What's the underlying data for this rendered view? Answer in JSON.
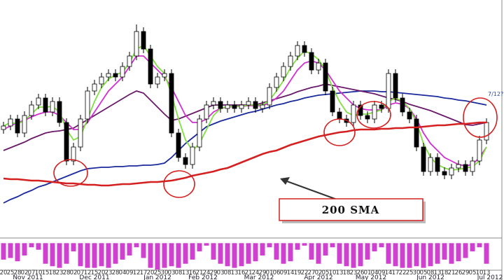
{
  "chart_data": [
    {
      "type": "candlestick",
      "categories": [
        "20",
        "25",
        "28",
        "02",
        "07",
        "10",
        "15",
        "18",
        "23",
        "28",
        "02",
        "07",
        "12",
        "15",
        "20",
        "23",
        "28",
        "04",
        "09",
        "12",
        "17",
        "20",
        "25",
        "30",
        "03",
        "08",
        "13",
        "16",
        "21",
        "24",
        "29",
        "03",
        "08",
        "13",
        "16",
        "21",
        "24",
        "29",
        "01",
        "06",
        "09",
        "14",
        "19",
        "22",
        "27",
        "02",
        "05",
        "10",
        "13",
        "18",
        "23",
        "26",
        "01",
        "04",
        "09",
        "14",
        "17",
        "22",
        "25",
        "30",
        "05",
        "08",
        "13",
        "18",
        "21",
        "26",
        "29",
        "05",
        "10",
        "13"
      ],
      "months": [
        "Nov 2011",
        "Dec 2011",
        "Jan 2012",
        "Feb 2012",
        "Mar 2012",
        "Apr 2012",
        "May 2012",
        "Jun 2012",
        "Jul 2012"
      ],
      "open": [
        150,
        155,
        165,
        145,
        170,
        185,
        195,
        175,
        190,
        160,
        105,
        125,
        165,
        205,
        215,
        225,
        230,
        225,
        240,
        255,
        290,
        265,
        215,
        225,
        230,
        145,
        110,
        100,
        125,
        165,
        185,
        190,
        180,
        185,
        180,
        185,
        190,
        180,
        185,
        210,
        225,
        240,
        255,
        270,
        260,
        235,
        245,
        205,
        175,
        165,
        160,
        185,
        170,
        165,
        185,
        180,
        230,
        195,
        175,
        165,
        125,
        90,
        110,
        90,
        85,
        95,
        100,
        90,
        105,
        135
      ],
      "high": [
        161,
        171,
        171,
        176,
        191,
        201,
        201,
        196,
        196,
        166,
        131,
        171,
        211,
        221,
        231,
        236,
        236,
        246,
        261,
        300,
        296,
        271,
        231,
        236,
        236,
        151,
        116,
        131,
        171,
        191,
        196,
        196,
        191,
        191,
        191,
        196,
        196,
        191,
        216,
        231,
        246,
        261,
        276,
        276,
        266,
        251,
        251,
        211,
        181,
        171,
        191,
        191,
        176,
        191,
        191,
        236,
        236,
        201,
        181,
        171,
        131,
        116,
        116,
        96,
        101,
        106,
        106,
        111,
        141,
        166
      ],
      "low": [
        144,
        149,
        139,
        139,
        164,
        179,
        169,
        169,
        154,
        99,
        99,
        119,
        159,
        199,
        209,
        219,
        219,
        219,
        234,
        249,
        259,
        209,
        209,
        219,
        139,
        104,
        94,
        94,
        119,
        159,
        179,
        174,
        174,
        174,
        174,
        179,
        174,
        174,
        179,
        204,
        219,
        234,
        249,
        254,
        229,
        229,
        199,
        169,
        159,
        154,
        154,
        164,
        159,
        159,
        174,
        174,
        189,
        169,
        159,
        119,
        84,
        84,
        84,
        79,
        79,
        89,
        84,
        84,
        99,
        129
      ],
      "close": [
        155,
        165,
        145,
        170,
        185,
        195,
        175,
        190,
        160,
        105,
        125,
        165,
        205,
        215,
        225,
        230,
        225,
        240,
        255,
        290,
        265,
        215,
        225,
        230,
        145,
        110,
        100,
        125,
        165,
        185,
        190,
        180,
        185,
        180,
        185,
        190,
        180,
        185,
        210,
        225,
        240,
        255,
        270,
        260,
        235,
        245,
        205,
        175,
        165,
        160,
        185,
        170,
        165,
        185,
        180,
        230,
        195,
        175,
        165,
        125,
        90,
        110,
        90,
        85,
        95,
        100,
        90,
        105,
        135,
        160
      ],
      "up_color": "#ffffff",
      "down_color": "#000000",
      "series": [
        {
          "name": "200 SMA",
          "color": "#d42020",
          "values": [
            80,
            79,
            79,
            78,
            77,
            77,
            76,
            75,
            74,
            73,
            73,
            72,
            71,
            71,
            70,
            70,
            71,
            72,
            72,
            73,
            74,
            75,
            75,
            76,
            77,
            79,
            81,
            84,
            86,
            88,
            90,
            93,
            95,
            99,
            103,
            107,
            111,
            115,
            118,
            120,
            124,
            128,
            131,
            134,
            137,
            140,
            142,
            144,
            146,
            147,
            149,
            150,
            150,
            150,
            151,
            151,
            152,
            152,
            153,
            153,
            154,
            155,
            156,
            156,
            157,
            158,
            158,
            159,
            160,
            160
          ]
        },
        {
          "color": "#1a2a9c",
          "values": [
            45,
            50,
            54,
            59,
            63,
            68,
            71,
            75,
            79,
            83,
            87,
            91,
            94,
            95,
            96,
            96,
            97,
            97,
            98,
            98,
            99,
            99,
            100,
            102,
            110,
            120,
            130,
            138,
            146,
            154,
            158,
            162,
            165,
            168,
            171,
            174,
            176,
            179,
            182,
            185,
            187,
            190,
            192,
            195,
            197,
            199,
            200,
            201,
            202,
            203,
            204,
            205,
            205,
            205,
            204,
            204,
            203,
            202,
            201,
            200,
            199,
            198,
            197,
            195,
            194,
            192,
            191,
            189,
            187,
            185
          ]
        },
        {
          "color": "#6a1a6a",
          "values": [
            120,
            124,
            128,
            132,
            137,
            141,
            145,
            147,
            148,
            150,
            152,
            158,
            164,
            170,
            176,
            182,
            188,
            194,
            200,
            205,
            202,
            192,
            182,
            172,
            163,
            165,
            169,
            173,
            177,
            181,
            185,
            185,
            185,
            185,
            185,
            185,
            185,
            188,
            191,
            194,
            197,
            200,
            204,
            207,
            210,
            212,
            215,
            213,
            211,
            209,
            207,
            205,
            203,
            201,
            198,
            195,
            193,
            190,
            186,
            183,
            180,
            177,
            173,
            169,
            165,
            161,
            157,
            156,
            158,
            160
          ]
        },
        {
          "color": "#d030d0",
          "values": [
            150,
            155,
            160,
            163,
            168,
            172,
            175,
            175,
            170,
            160,
            150,
            150,
            160,
            175,
            190,
            205,
            215,
            225,
            240,
            255,
            255,
            245,
            235,
            225,
            210,
            190,
            170,
            160,
            160,
            165,
            175,
            180,
            182,
            183,
            183,
            184,
            184,
            184,
            188,
            195,
            205,
            220,
            235,
            245,
            248,
            245,
            235,
            220,
            205,
            195,
            185,
            180,
            178,
            178,
            178,
            185,
            188,
            186,
            180,
            165,
            145,
            130,
            120,
            110,
            105,
            100,
            98,
            100,
            110,
            125
          ]
        },
        {
          "color": "#80e040",
          "values": [
            155,
            160,
            158,
            163,
            172,
            182,
            182,
            183,
            175,
            150,
            135,
            140,
            165,
            190,
            210,
            222,
            228,
            232,
            245,
            265,
            270,
            255,
            240,
            230,
            200,
            165,
            135,
            120,
            130,
            150,
            170,
            180,
            183,
            183,
            183,
            185,
            185,
            185,
            192,
            205,
            220,
            238,
            252,
            262,
            258,
            250,
            235,
            210,
            190,
            175,
            170,
            172,
            172,
            175,
            178,
            190,
            195,
            190,
            180,
            160,
            130,
            110,
            100,
            95,
            92,
            93,
            95,
            97,
            105,
            125
          ]
        }
      ],
      "ylim": [
        0,
        335
      ],
      "annotations": [
        "200 SMA",
        "7/12?"
      ]
    },
    {
      "type": "bar",
      "color": "#d040d0",
      "values": [
        -20,
        -18,
        -22,
        -15,
        -5,
        -8,
        -25,
        -28,
        -30,
        -25,
        -10,
        -28,
        -30,
        -30,
        -28,
        -30,
        -25,
        -20,
        -15,
        -5,
        -18,
        -30,
        -32,
        -30,
        -28,
        -30,
        -25,
        -20,
        -10,
        -3,
        -20,
        -25,
        -28,
        -30,
        -28,
        -25,
        -22,
        -15,
        -5,
        -20,
        -25,
        -22,
        -8,
        -3,
        -20,
        -25,
        -15,
        -5,
        -25,
        -28,
        -30,
        -28,
        -20,
        -10,
        -5,
        -25,
        -28,
        -30,
        -30,
        -28,
        -30,
        -28,
        -25,
        -20,
        -25,
        -22,
        -18,
        -10,
        -5,
        -25
      ],
      "ylim": [
        -32,
        2
      ]
    }
  ]
}
